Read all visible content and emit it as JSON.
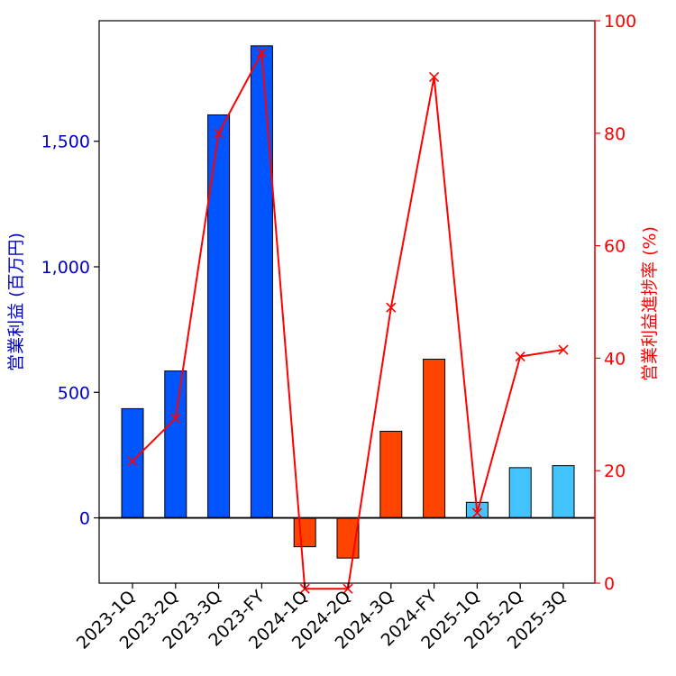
{
  "chart_data": {
    "type": "bar+line",
    "categories": [
      "2023-1Q",
      "2023-2Q",
      "2023-3Q",
      "2023-FY",
      "2024-1Q",
      "2024-2Q",
      "2024-3Q",
      "2024-FY",
      "2025-1Q",
      "2025-2Q",
      "2025-3Q"
    ],
    "bars": {
      "name": "営業利益",
      "values": [
        435,
        585,
        1605,
        1880,
        -115,
        -160,
        345,
        632,
        62,
        200,
        208
      ],
      "colors": [
        "#0055ff",
        "#0055ff",
        "#0055ff",
        "#0055ff",
        "#ff4400",
        "#ff4400",
        "#ff4400",
        "#ff4400",
        "#44c4ff",
        "#44c4ff",
        "#44c4ff"
      ]
    },
    "line": {
      "name": "営業利益進捗率",
      "values": [
        21.7,
        29.3,
        80.0,
        94.3,
        -1.0,
        -1.0,
        49.0,
        90.0,
        12.5,
        40.3,
        41.5
      ],
      "color": "#ff0000",
      "marker": "x"
    },
    "y_left": {
      "label": "営業利益 (百万円)",
      "ylim": [
        -260,
        1980
      ],
      "ticks": [
        0,
        500,
        1000,
        1500
      ],
      "tick_labels": [
        "0",
        "500",
        "1,000",
        "1,500"
      ],
      "color": "#0000cc"
    },
    "y_right": {
      "label": "営業利益進捗率 (%)",
      "ylim": [
        0,
        100
      ],
      "ticks": [
        0,
        20,
        40,
        60,
        80,
        100
      ],
      "tick_labels": [
        "0",
        "20",
        "40",
        "60",
        "80",
        "100"
      ],
      "color": "#ff0000"
    },
    "zero_line": true
  }
}
